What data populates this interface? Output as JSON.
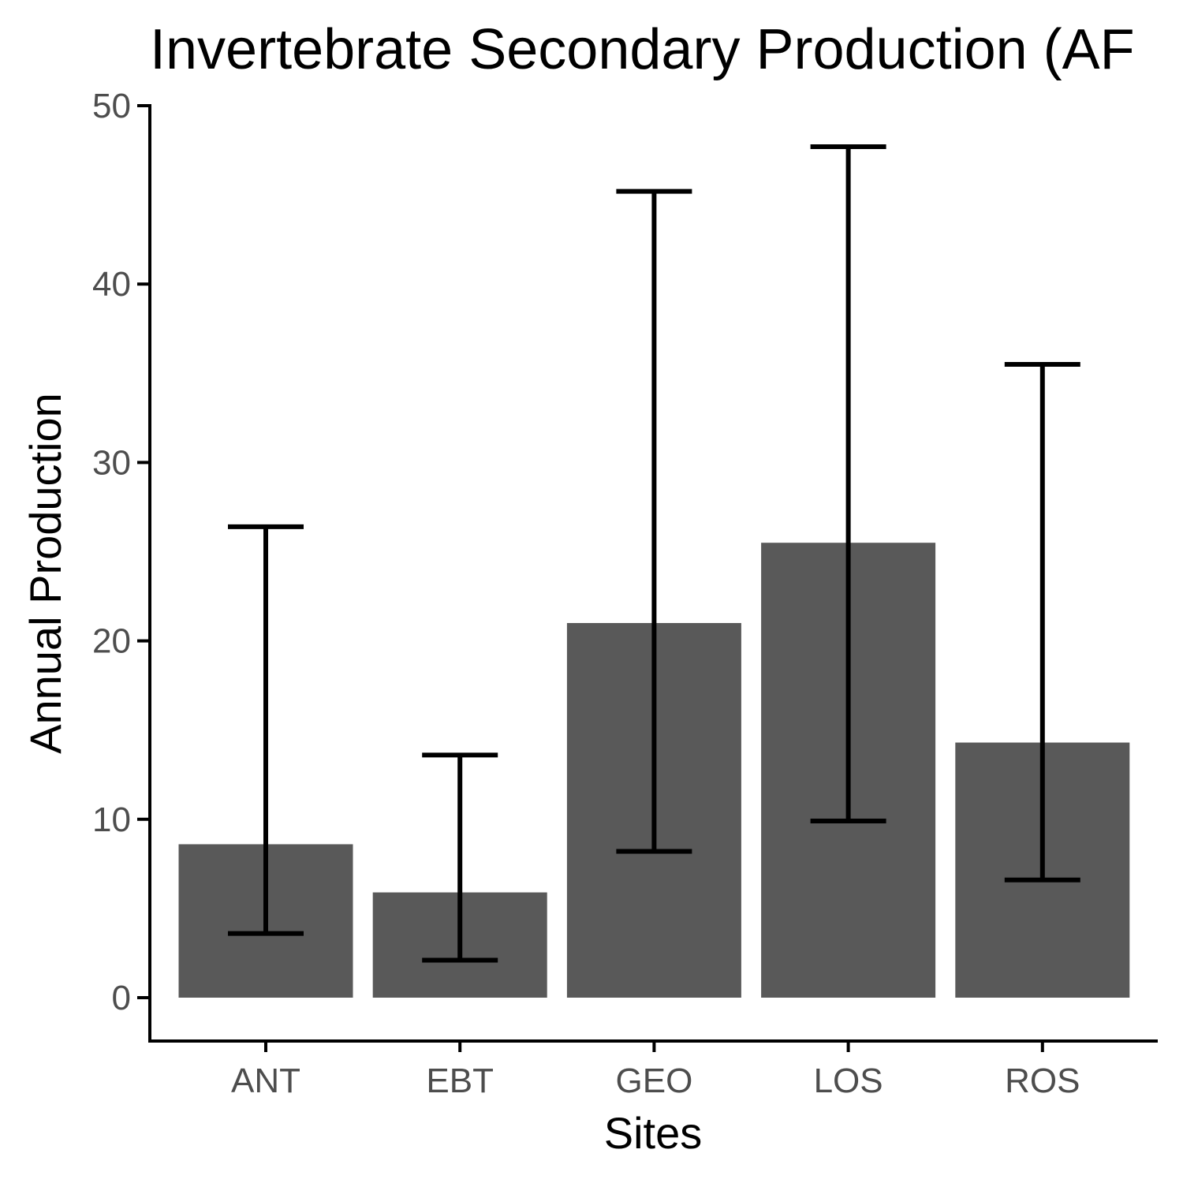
{
  "chart_data": {
    "type": "bar",
    "title": "Invertebrate Secondary Production (AF",
    "xlabel": "Sites",
    "ylabel": "Annual Production",
    "categories": [
      "ANT",
      "EBT",
      "GEO",
      "LOS",
      "ROS"
    ],
    "values": [
      8.6,
      5.9,
      21.0,
      25.5,
      14.3
    ],
    "error_bars": {
      "lower": [
        3.6,
        2.1,
        8.2,
        9.9,
        6.6
      ],
      "upper": [
        26.4,
        13.6,
        45.2,
        47.7,
        35.5
      ]
    },
    "ylim": [
      0,
      50
    ],
    "yticks": [
      0,
      10,
      20,
      30,
      40,
      50
    ],
    "grid": false,
    "bar_color": "#595959",
    "errorbar_color": "#000000",
    "axis_color": "#000000",
    "tick_label_color": "#4d4d4d"
  }
}
